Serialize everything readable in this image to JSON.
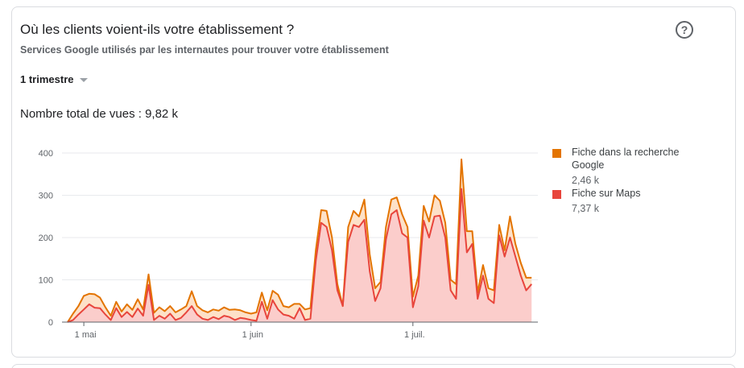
{
  "card": {
    "title": "Où les clients voient-ils votre établissement ?",
    "subtitle": "Services Google utilisés par les internautes pour trouver votre établissement",
    "period_label": "1 trimestre",
    "total_label": "Nombre total de vues : 9,82 k",
    "help_icon": "?"
  },
  "legend": [
    {
      "name": "Fiche dans la recherche Google",
      "value": "2,46 k",
      "color": "#e37400"
    },
    {
      "name": "Fiche sur Maps",
      "value": "7,37 k",
      "color": "#e8453c"
    }
  ],
  "chart_data": {
    "type": "area",
    "stacked": true,
    "ylim": [
      0,
      400
    ],
    "yticks": [
      "0",
      "100",
      "200",
      "300",
      "400"
    ],
    "xtick_labels": [
      {
        "label": "1 mai",
        "index": 3
      },
      {
        "label": "1 juin",
        "index": 34
      },
      {
        "label": "1 juil.",
        "index": 64
      }
    ],
    "grid": true,
    "legend_position": "right",
    "colors": {
      "search_line": "#e37400",
      "search_fill": "#fde1c8",
      "maps_line": "#e8453c",
      "maps_fill": "#fbcdcb"
    },
    "series": [
      {
        "name": "Fiche sur Maps",
        "values": [
          0,
          5,
          18,
          30,
          42,
          34,
          33,
          18,
          5,
          33,
          12,
          24,
          12,
          32,
          15,
          88,
          5,
          15,
          8,
          20,
          5,
          10,
          23,
          38,
          18,
          8,
          5,
          12,
          7,
          15,
          12,
          5,
          10,
          8,
          5,
          3,
          48,
          8,
          52,
          30,
          18,
          15,
          8,
          33,
          5,
          8,
          145,
          235,
          225,
          170,
          75,
          38,
          190,
          230,
          225,
          242,
          120,
          50,
          80,
          195,
          255,
          265,
          210,
          200,
          35,
          85,
          240,
          200,
          250,
          252,
          200,
          75,
          55,
          315,
          165,
          185,
          55,
          110,
          55,
          45,
          205,
          155,
          200,
          155,
          110,
          75,
          90
        ]
      },
      {
        "name": "Fiche dans la recherche Google",
        "values": [
          0,
          15,
          20,
          32,
          25,
          32,
          25,
          17,
          10,
          15,
          13,
          18,
          17,
          22,
          15,
          25,
          17,
          20,
          18,
          18,
          18,
          20,
          15,
          35,
          20,
          20,
          18,
          18,
          20,
          20,
          17,
          25,
          18,
          15,
          15,
          20,
          22,
          20,
          22,
          35,
          20,
          20,
          35,
          10,
          25,
          25,
          25,
          30,
          38,
          30,
          15,
          0,
          35,
          33,
          25,
          48,
          40,
          30,
          15,
          30,
          35,
          30,
          45,
          25,
          25,
          25,
          35,
          38,
          50,
          35,
          35,
          25,
          35,
          70,
          50,
          30,
          15,
          25,
          25,
          30,
          25,
          15,
          50,
          30,
          30,
          30,
          15
        ]
      }
    ]
  }
}
